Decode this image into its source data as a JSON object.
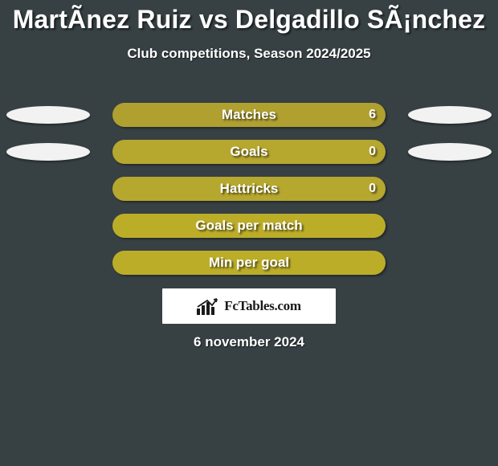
{
  "background_color": "#374043",
  "text_color": "#ffffff",
  "title": "MartÃ­nez Ruiz vs Delgadillo SÃ¡nchez",
  "title_fontsize": 32,
  "subtitle": "Club competitions, Season 2024/2025",
  "subtitle_fontsize": 17,
  "ellipse_color": "#f2f2f2",
  "stats": {
    "type": "bar",
    "bar_colors": {
      "olive_dark": "#afa030",
      "olive_mid": "#b6a72f",
      "olive_light": "#bcad29"
    },
    "rows": [
      {
        "label": "Matches",
        "value": "6",
        "barColorKey": "olive_dark",
        "showEllipses": true
      },
      {
        "label": "Goals",
        "value": "0",
        "barColorKey": "olive_mid",
        "showEllipses": true
      },
      {
        "label": "Hattricks",
        "value": "0",
        "barColorKey": "olive_mid",
        "showEllipses": false
      },
      {
        "label": "Goals per match",
        "value": "",
        "barColorKey": "olive_light",
        "showEllipses": false
      },
      {
        "label": "Min per goal",
        "value": "",
        "barColorKey": "olive_light",
        "showEllipses": false
      }
    ]
  },
  "logo_text": "FcTables.com",
  "date": "6 november 2024"
}
